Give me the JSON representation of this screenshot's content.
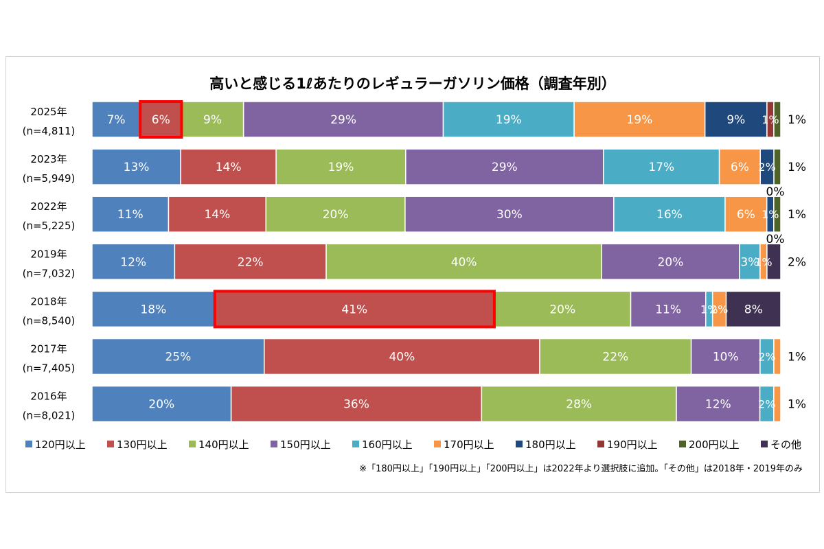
{
  "chart_data": {
    "type": "bar",
    "orientation": "horizontal",
    "stacked": true,
    "normalized": true,
    "title": "高いと感じる1ℓあたりのレギュラーガソリン価格（調査年別）",
    "categories": [
      {
        "year": "2025年",
        "n": "(n=4,811)"
      },
      {
        "year": "2023年",
        "n": "(n=5,949)"
      },
      {
        "year": "2022年",
        "n": "(n=5,225)"
      },
      {
        "year": "2019年",
        "n": "(n=7,032)"
      },
      {
        "year": "2018年",
        "n": "(n=8,540)"
      },
      {
        "year": "2017年",
        "n": "(n=7,405)"
      },
      {
        "year": "2016年",
        "n": "(n=8,021)"
      }
    ],
    "series": [
      {
        "name": "120円以上",
        "color": "#4f81bd",
        "values": [
          7,
          13,
          11,
          12,
          18,
          25,
          20
        ]
      },
      {
        "name": "130円以上",
        "color": "#c0504d",
        "values": [
          6,
          14,
          14,
          22,
          41,
          40,
          36
        ]
      },
      {
        "name": "140円以上",
        "color": "#9bbb59",
        "values": [
          9,
          19,
          20,
          40,
          20,
          22,
          28
        ]
      },
      {
        "name": "150円以上",
        "color": "#8064a2",
        "values": [
          29,
          29,
          30,
          20,
          11,
          10,
          12
        ]
      },
      {
        "name": "160円以上",
        "color": "#4bacc6",
        "values": [
          19,
          17,
          16,
          3,
          1,
          2,
          2
        ]
      },
      {
        "name": "170円以上",
        "color": "#f79646",
        "values": [
          19,
          6,
          6,
          1,
          2,
          1,
          1
        ]
      },
      {
        "name": "180円以上",
        "color": "#1f497d",
        "values": [
          9,
          2,
          1,
          null,
          null,
          null,
          null
        ]
      },
      {
        "name": "190円以上",
        "color": "#943634",
        "values": [
          1,
          0,
          0,
          null,
          null,
          null,
          null
        ]
      },
      {
        "name": "200円以上",
        "color": "#4f6228",
        "values": [
          1,
          1,
          1,
          null,
          null,
          null,
          null
        ]
      },
      {
        "name": "その他",
        "color": "#3f3151",
        "values": [
          null,
          null,
          null,
          2,
          8,
          null,
          null
        ]
      }
    ],
    "highlights": [
      {
        "category_index": 0,
        "series_index": 1
      },
      {
        "category_index": 4,
        "series_index": 1
      }
    ],
    "note": "※「180円以上」「190円以上」「200円以上」は2022年より選択肢に追加。「その他」は2018年・2019年のみ",
    "legend_position": "bottom"
  }
}
